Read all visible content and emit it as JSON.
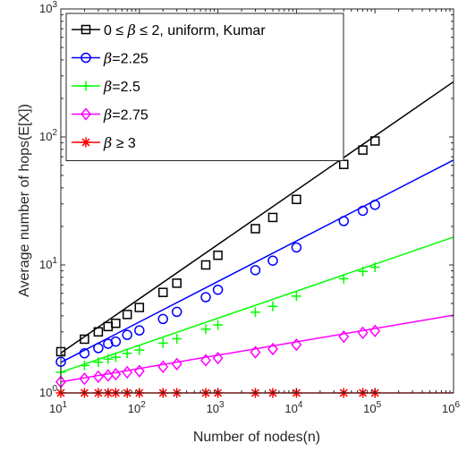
{
  "chart_data": {
    "type": "line",
    "xlabel": "Number of nodes(n)",
    "ylabel": "Average number of hops(E[X])",
    "xscale": "log",
    "yscale": "log",
    "xlim": [
      10,
      1000000
    ],
    "ylim": [
      1,
      1000
    ],
    "x_tick_labels": [
      {
        "base": "10",
        "exp": "1"
      },
      {
        "base": "10",
        "exp": "2"
      },
      {
        "base": "10",
        "exp": "3"
      },
      {
        "base": "10",
        "exp": "4"
      },
      {
        "base": "10",
        "exp": "5"
      },
      {
        "base": "10",
        "exp": "6"
      }
    ],
    "y_tick_labels": [
      {
        "base": "10",
        "exp": "0"
      },
      {
        "base": "10",
        "exp": "1"
      },
      {
        "base": "10",
        "exp": "2"
      },
      {
        "base": "10",
        "exp": "3"
      }
    ],
    "grid": false,
    "legend_position": "top-left",
    "marker_x": [
      10,
      20,
      30,
      40,
      50,
      70,
      100,
      200,
      300,
      700,
      1000,
      3000,
      5000,
      10000,
      40000,
      70000,
      100000
    ],
    "series": [
      {
        "name": "0 ≤ β ≤ 2, uniform, Kumar",
        "legend_prefix": "0 ≤ ",
        "legend_symbol": "β",
        "legend_suffix": " ≤ 2, uniform, Kumar",
        "color": "#000000",
        "marker": "square",
        "line": {
          "x": [
            10,
            1000000
          ],
          "y": [
            2.05,
            270
          ]
        },
        "marker_y": [
          2.1,
          2.63,
          3.0,
          3.3,
          3.5,
          4.1,
          4.65,
          6.1,
          7.2,
          10.0,
          11.9,
          19.2,
          23.5,
          32.5,
          61,
          79,
          93
        ]
      },
      {
        "name": "β=2.25",
        "legend_prefix": "",
        "legend_symbol": "β",
        "legend_suffix": "=2.25",
        "color": "#0000ff",
        "marker": "circle",
        "line": {
          "x": [
            10,
            1000000
          ],
          "y": [
            1.73,
            66
          ]
        },
        "marker_y": [
          1.75,
          2.04,
          2.24,
          2.42,
          2.52,
          2.84,
          3.08,
          3.78,
          4.3,
          5.6,
          6.4,
          9.1,
          10.8,
          13.7,
          22.0,
          26.5,
          29.5
        ]
      },
      {
        "name": "β=2.5",
        "legend_prefix": "",
        "legend_symbol": "β",
        "legend_suffix": "=2.5",
        "color": "#00ff00",
        "marker": "plus",
        "line": {
          "x": [
            10,
            1000000
          ],
          "y": [
            1.45,
            16.5
          ]
        },
        "marker_y": [
          1.45,
          1.64,
          1.74,
          1.84,
          1.9,
          2.04,
          2.16,
          2.45,
          2.65,
          3.15,
          3.4,
          4.28,
          4.75,
          5.7,
          7.8,
          8.9,
          9.6
        ]
      },
      {
        "name": "β=2.75",
        "legend_prefix": "",
        "legend_symbol": "β",
        "legend_suffix": "=2.75",
        "color": "#ff00ff",
        "marker": "diamond",
        "line": {
          "x": [
            10,
            1000000
          ],
          "y": [
            1.22,
            4.05
          ]
        },
        "marker_y": [
          1.22,
          1.29,
          1.34,
          1.37,
          1.4,
          1.45,
          1.48,
          1.6,
          1.68,
          1.8,
          1.87,
          2.08,
          2.2,
          2.38,
          2.75,
          2.95,
          3.05
        ]
      },
      {
        "name": "β ≥ 3",
        "legend_prefix": "",
        "legend_symbol": "β",
        "legend_suffix": " ≥ 3",
        "color": "#ff0000",
        "marker": "asterisk",
        "line": {
          "x": [
            10,
            1000000
          ],
          "y": [
            1,
            1
          ]
        },
        "marker_y": [
          1,
          1,
          1,
          1,
          1,
          1,
          1,
          1,
          1,
          1,
          1,
          1,
          1,
          1,
          1,
          1,
          1
        ]
      }
    ]
  }
}
